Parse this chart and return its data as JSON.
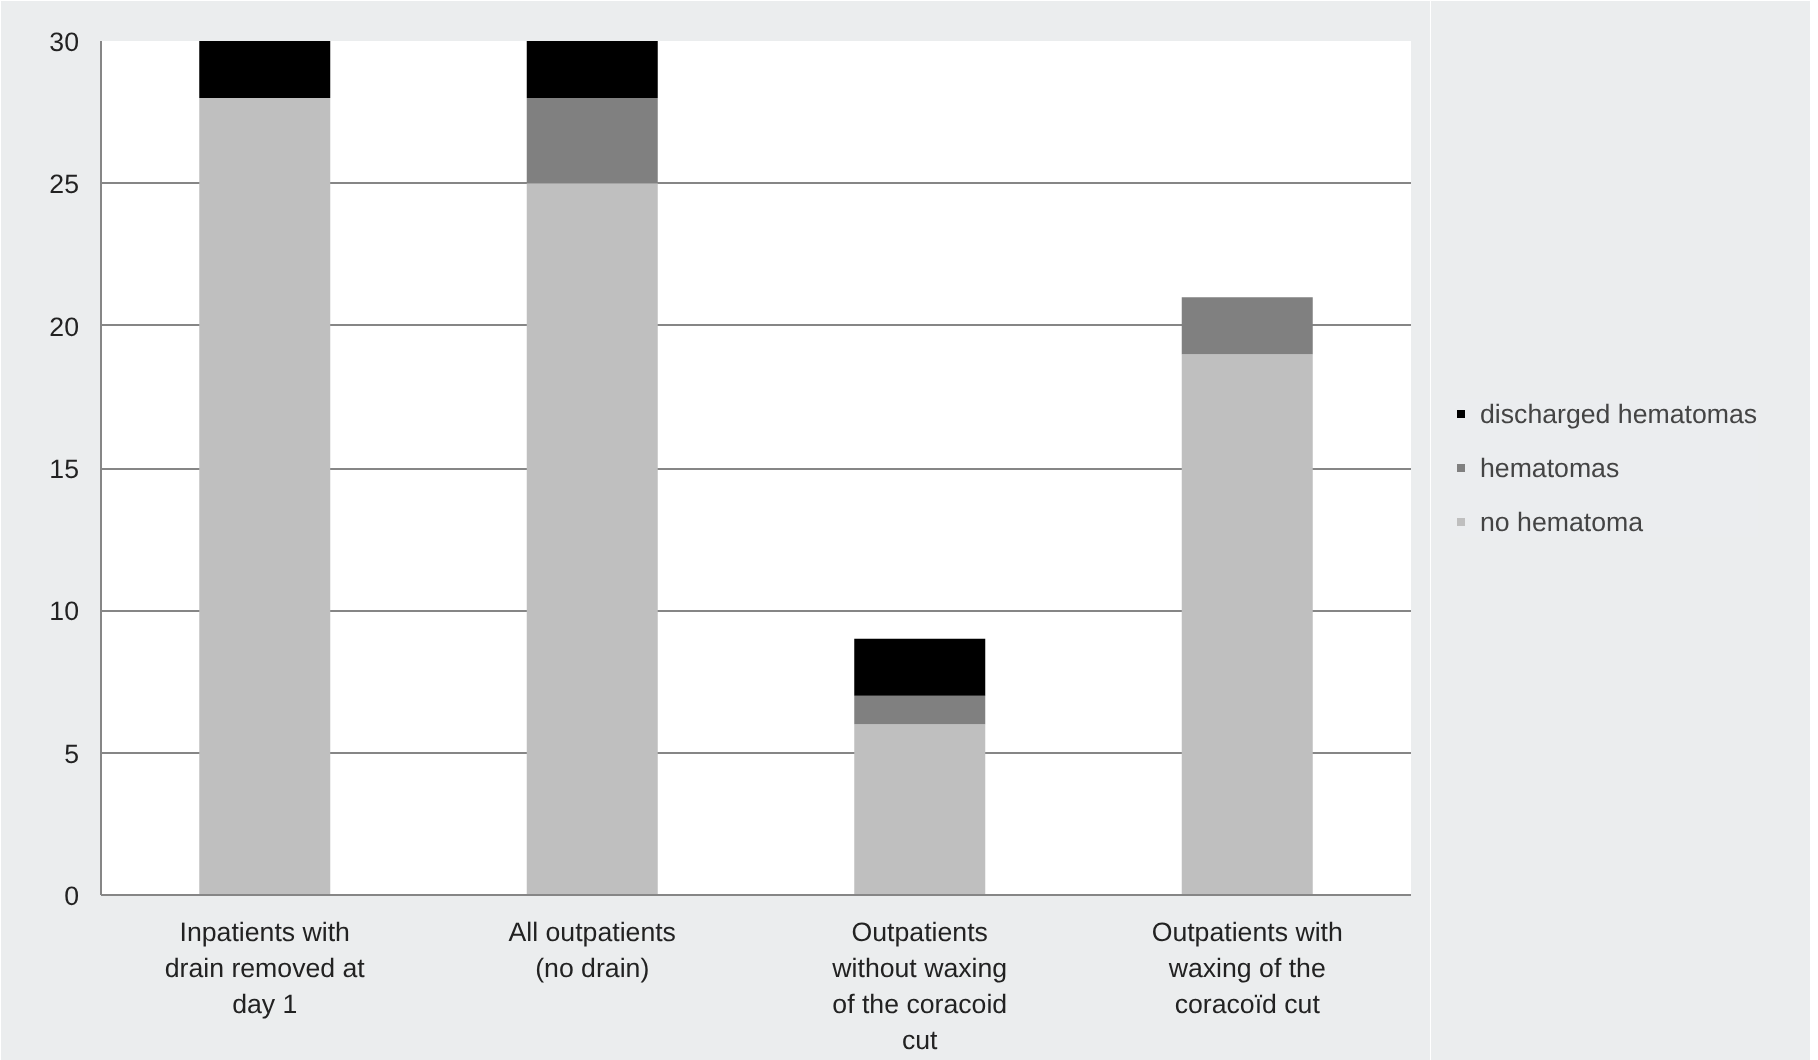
{
  "chart_data": {
    "type": "bar",
    "stacked": true,
    "categories": [
      "Inpatients with drain removed at day 1",
      "All outpatients (no drain)",
      "Outpatients without waxing of the coracoid cut",
      "Outpatients with waxing of the coracoïd cut"
    ],
    "series": [
      {
        "name": "no hematoma",
        "color": "#bfbfbf",
        "values": [
          28,
          25,
          6,
          19
        ]
      },
      {
        "name": "hematomas",
        "color": "#808080",
        "values": [
          0,
          3,
          1,
          2
        ]
      },
      {
        "name": "discharged hematomas",
        "color": "#000000",
        "values": [
          2,
          2,
          2,
          0
        ]
      }
    ],
    "ylim": [
      0,
      30
    ],
    "yticks": [
      0,
      5,
      10,
      15,
      20,
      25,
      30
    ],
    "grid": "y",
    "legend": "right"
  }
}
